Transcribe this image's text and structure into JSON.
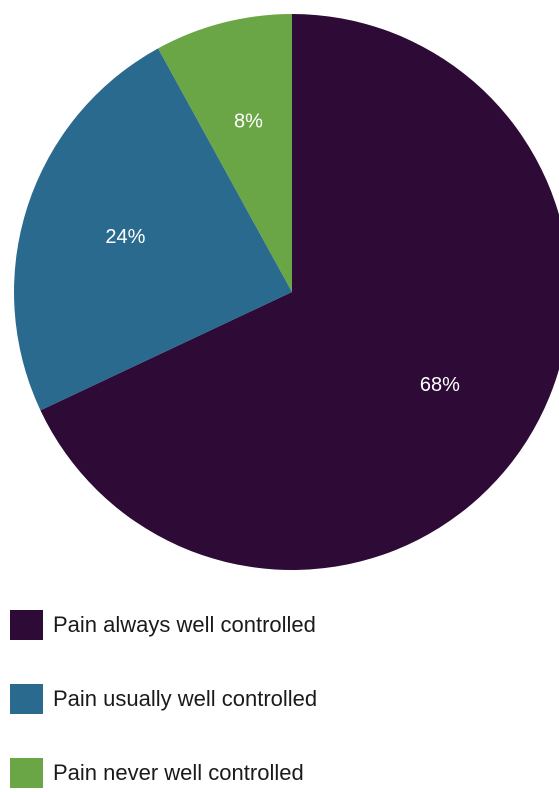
{
  "chart_data": {
    "type": "pie",
    "title": "",
    "labels": [
      "Pain always well controlled",
      "Pain usually well controlled",
      "Pain never well controlled"
    ],
    "values": [
      68,
      24,
      8
    ],
    "value_labels": [
      "68%",
      "24%",
      "8%"
    ],
    "colors": [
      "#2e0a36",
      "#2b6a8f",
      "#6aa645"
    ],
    "legend_position": "bottom",
    "start_angle": "12 o'clock, clockwise"
  }
}
